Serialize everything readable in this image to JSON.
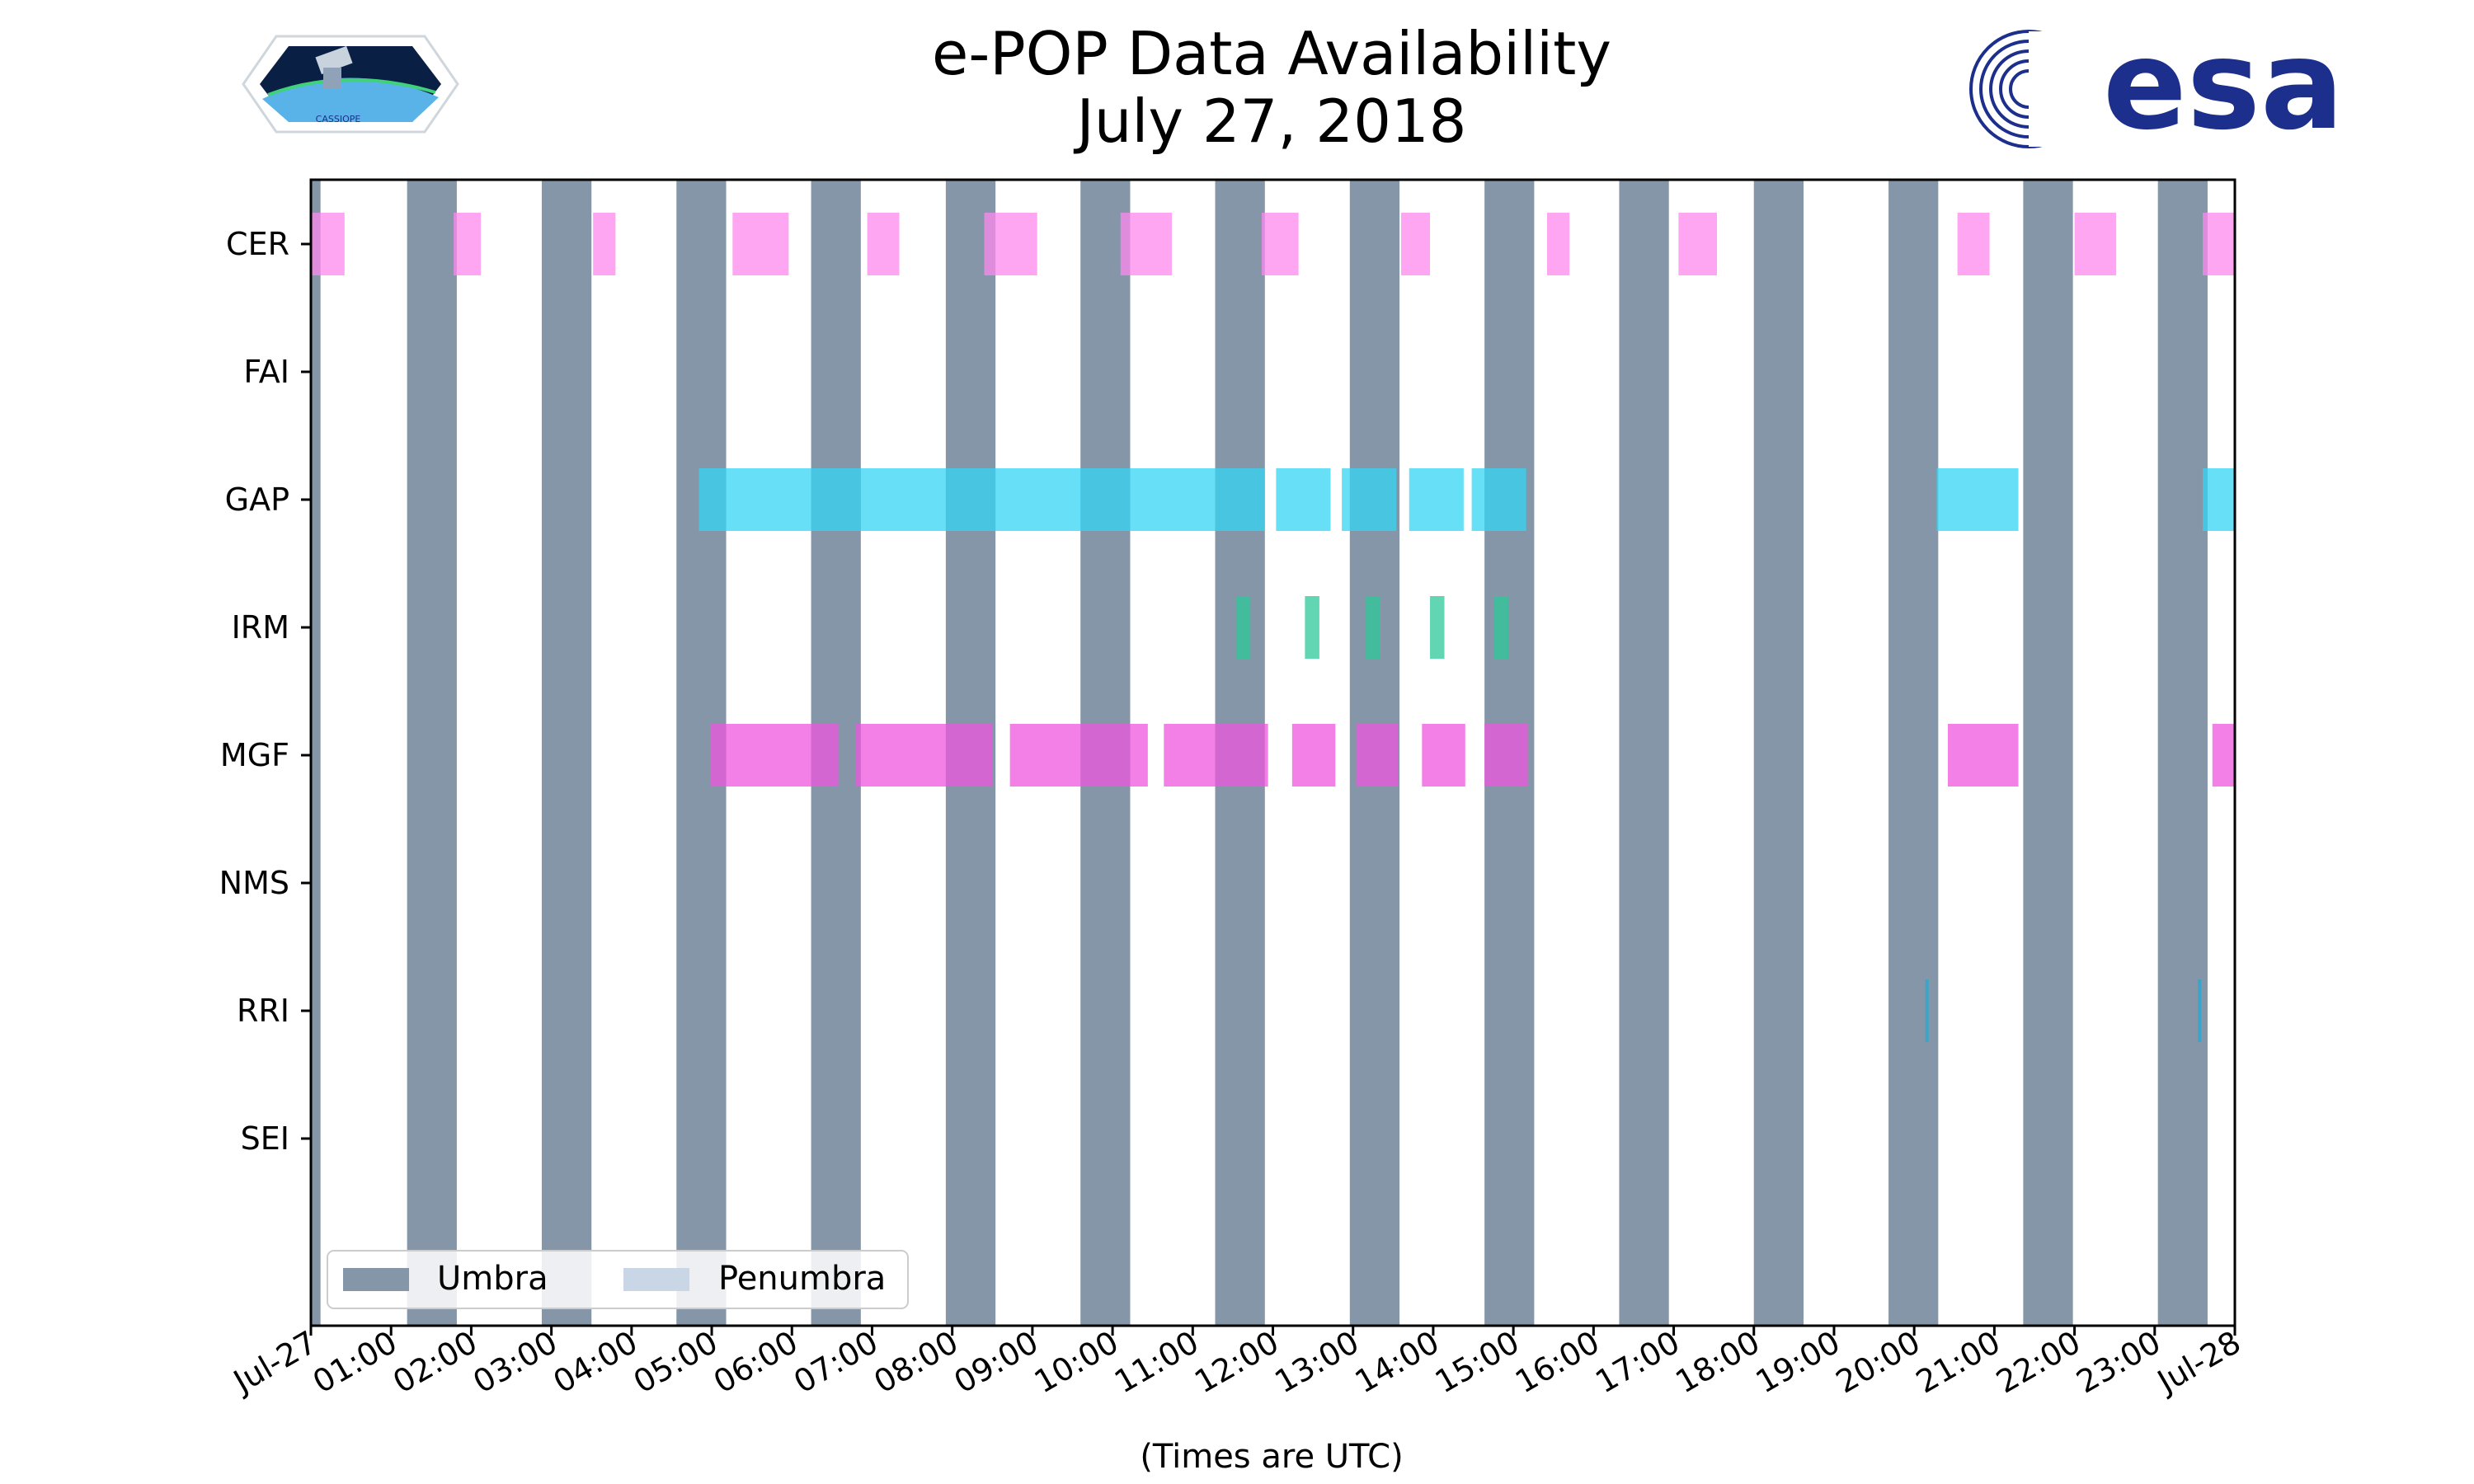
{
  "chart_data": {
    "type": "timeline",
    "title": [
      "e-POP Data Availability",
      "July 27, 2018"
    ],
    "xlabel": "(Times are UTC)",
    "xlim_hours": [
      0,
      24
    ],
    "x_tick_labels": [
      "Jul-27",
      "01:00",
      "02:00",
      "03:00",
      "04:00",
      "05:00",
      "06:00",
      "07:00",
      "08:00",
      "09:00",
      "10:00",
      "11:00",
      "12:00",
      "13:00",
      "14:00",
      "15:00",
      "16:00",
      "17:00",
      "18:00",
      "19:00",
      "20:00",
      "21:00",
      "22:00",
      "23:00",
      "Jul-28"
    ],
    "instruments": [
      "CER",
      "FAI",
      "GAP",
      "IRM",
      "MGF",
      "NMS",
      "RRI",
      "SEI"
    ],
    "umbra_intervals": [
      [
        0,
        0.12
      ],
      [
        1.2,
        1.82
      ],
      [
        2.88,
        3.5
      ],
      [
        4.56,
        5.18
      ],
      [
        6.24,
        6.86
      ],
      [
        7.92,
        8.54
      ],
      [
        9.6,
        10.22
      ],
      [
        11.28,
        11.9
      ],
      [
        12.96,
        13.58
      ],
      [
        14.64,
        15.26
      ],
      [
        16.32,
        16.94
      ],
      [
        18.0,
        18.62
      ],
      [
        19.68,
        20.3
      ],
      [
        21.36,
        21.98
      ],
      [
        23.04,
        23.66
      ]
    ],
    "series": [
      {
        "name": "CER",
        "color": "#ff88ee",
        "intervals": [
          [
            0,
            0.42
          ],
          [
            1.78,
            2.12
          ],
          [
            3.52,
            3.8
          ],
          [
            5.26,
            5.96
          ],
          [
            6.94,
            7.34
          ],
          [
            8.4,
            9.06
          ],
          [
            10.1,
            10.74
          ],
          [
            11.86,
            12.32
          ],
          [
            13.6,
            13.96
          ],
          [
            15.42,
            15.7
          ],
          [
            17.06,
            17.54
          ],
          [
            20.54,
            20.94
          ],
          [
            22.0,
            22.52
          ],
          [
            23.6,
            24.0
          ]
        ]
      },
      {
        "name": "FAI",
        "color": "#ffffff",
        "intervals": []
      },
      {
        "name": "GAP",
        "color": "#33d4f4",
        "intervals": [
          [
            4.84,
            11.9
          ],
          [
            12.04,
            12.72
          ],
          [
            12.86,
            13.54
          ],
          [
            13.7,
            14.38
          ],
          [
            14.48,
            15.16
          ],
          [
            20.28,
            21.3
          ],
          [
            23.6,
            24.0
          ]
        ]
      },
      {
        "name": "IRM",
        "color": "#2ec79a",
        "intervals": [
          [
            11.54,
            11.72
          ],
          [
            12.4,
            12.58
          ],
          [
            13.16,
            13.34
          ],
          [
            13.96,
            14.14
          ],
          [
            14.76,
            14.94
          ]
        ]
      },
      {
        "name": "MGF",
        "color": "#ee55dd",
        "intervals": [
          [
            4.98,
            6.58
          ],
          [
            6.8,
            8.5
          ],
          [
            8.72,
            10.44
          ],
          [
            10.64,
            11.94
          ],
          [
            12.24,
            12.78
          ],
          [
            13.04,
            13.56
          ],
          [
            13.86,
            14.4
          ],
          [
            14.64,
            15.18
          ],
          [
            20.42,
            21.3
          ],
          [
            23.72,
            24.0
          ]
        ]
      },
      {
        "name": "NMS",
        "color": "#ffffff",
        "intervals": []
      },
      {
        "name": "RRI",
        "color": "#1fa9d6",
        "intervals": [
          [
            20.14,
            20.18
          ],
          [
            23.54,
            23.58
          ]
        ]
      },
      {
        "name": "SEI",
        "color": "#ffffff",
        "intervals": []
      }
    ],
    "legend": [
      {
        "label": "Umbra",
        "color": "#8496a8"
      },
      {
        "label": "Penumbra",
        "color": "#c9d6e6"
      }
    ],
    "legend_position": "bottom-left"
  },
  "logos": {
    "esa_text": "esa",
    "cassiope_text": "CASSIOPE"
  },
  "colors": {
    "umbra": "#8496a8",
    "penumbra": "#c9d6e6"
  }
}
